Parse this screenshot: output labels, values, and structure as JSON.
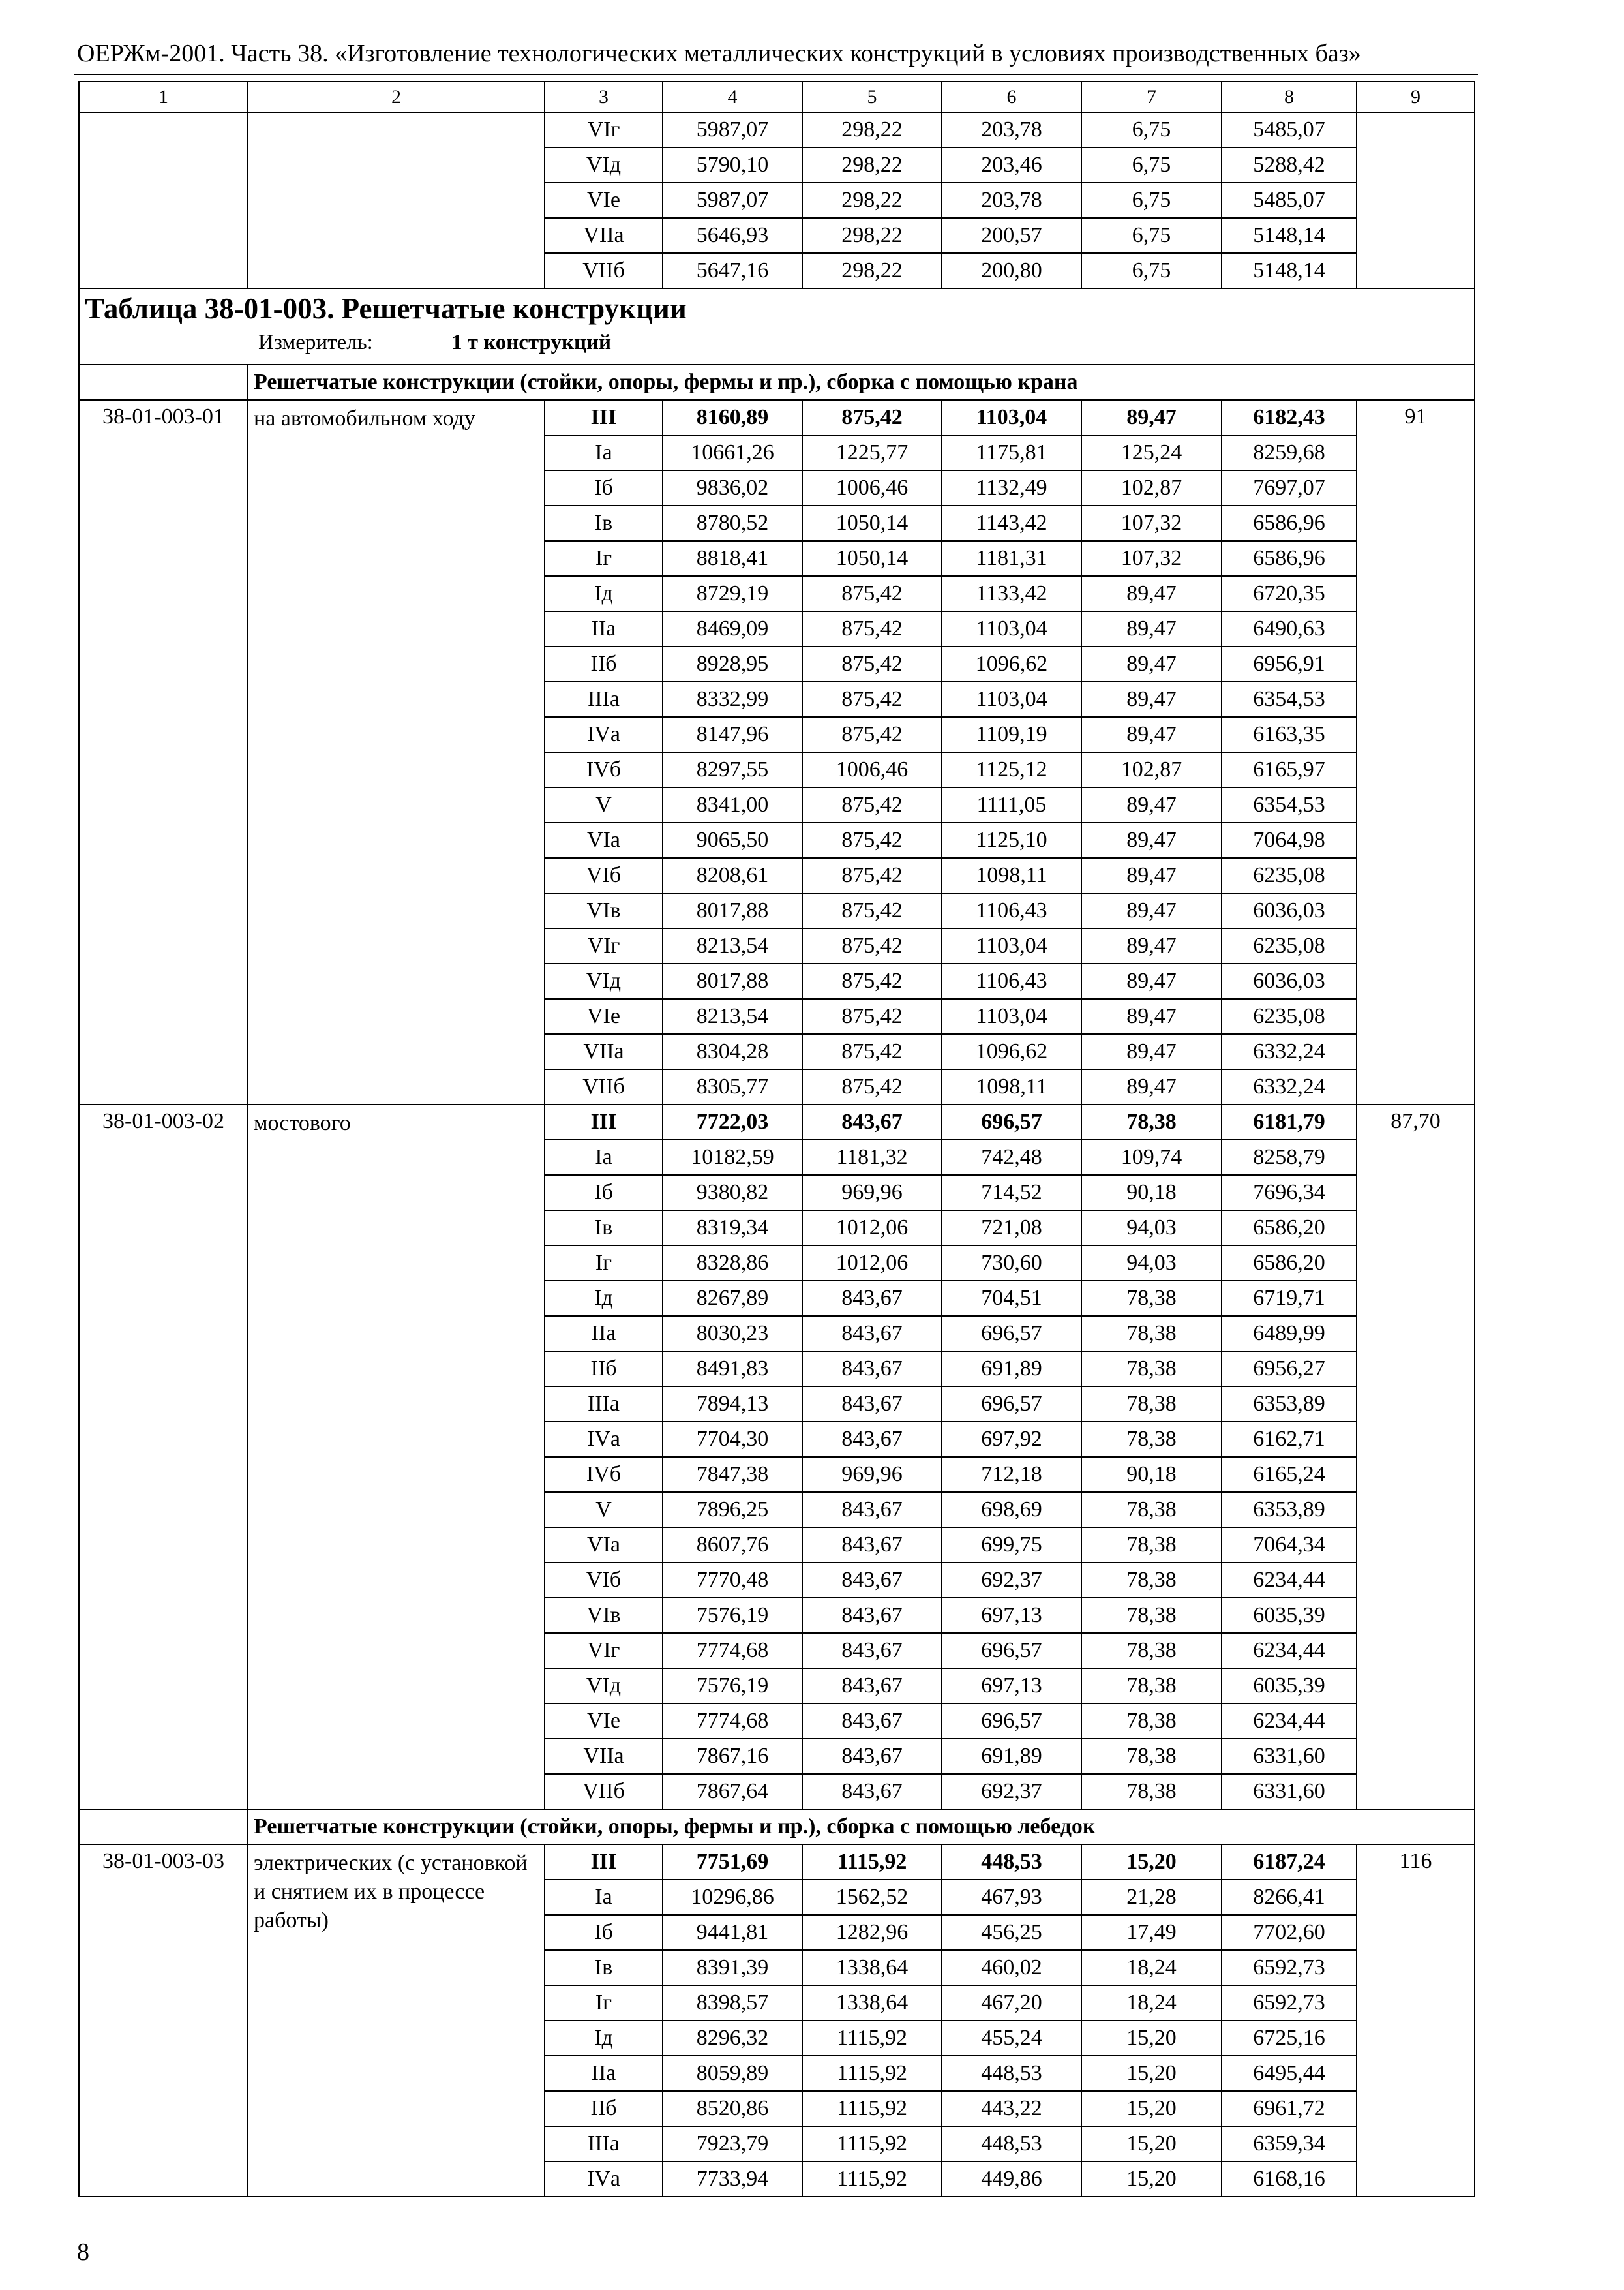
{
  "header": "ОЕРЖм-2001. Часть 38. «Изготовление технологических металлических конструкций в условиях производственных баз»",
  "columns": [
    "1",
    "2",
    "3",
    "4",
    "5",
    "6",
    "7",
    "8",
    "9"
  ],
  "continuation": {
    "rows": [
      [
        "VIг",
        "5987,07",
        "298,22",
        "203,78",
        "6,75",
        "5485,07"
      ],
      [
        "VIд",
        "5790,10",
        "298,22",
        "203,46",
        "6,75",
        "5288,42"
      ],
      [
        "VIе",
        "5987,07",
        "298,22",
        "203,78",
        "6,75",
        "5485,07"
      ],
      [
        "VIIа",
        "5646,93",
        "298,22",
        "200,57",
        "6,75",
        "5148,14"
      ],
      [
        "VIIб",
        "5647,16",
        "298,22",
        "200,80",
        "6,75",
        "5148,14"
      ]
    ]
  },
  "table": {
    "title": "Таблица 38-01-003. Решетчатые конструкции",
    "unit_label": "Измеритель:",
    "unit": "1 т конструкций",
    "sections": [
      {
        "heading": "Решетчатые конструкции (стойки, опоры, фермы и пр.), сборка с помощью крана",
        "groups": [
          {
            "code": "38-01-003-01",
            "name": "на автомобильном ходу",
            "value": "91",
            "rows": [
              [
                "III",
                "8160,89",
                "875,42",
                "1103,04",
                "89,47",
                "6182,43"
              ],
              [
                "Iа",
                "10661,26",
                "1225,77",
                "1175,81",
                "125,24",
                "8259,68"
              ],
              [
                "Iб",
                "9836,02",
                "1006,46",
                "1132,49",
                "102,87",
                "7697,07"
              ],
              [
                "Iв",
                "8780,52",
                "1050,14",
                "1143,42",
                "107,32",
                "6586,96"
              ],
              [
                "Iг",
                "8818,41",
                "1050,14",
                "1181,31",
                "107,32",
                "6586,96"
              ],
              [
                "Iд",
                "8729,19",
                "875,42",
                "1133,42",
                "89,47",
                "6720,35"
              ],
              [
                "IIа",
                "8469,09",
                "875,42",
                "1103,04",
                "89,47",
                "6490,63"
              ],
              [
                "IIб",
                "8928,95",
                "875,42",
                "1096,62",
                "89,47",
                "6956,91"
              ],
              [
                "IIIа",
                "8332,99",
                "875,42",
                "1103,04",
                "89,47",
                "6354,53"
              ],
              [
                "IVа",
                "8147,96",
                "875,42",
                "1109,19",
                "89,47",
                "6163,35"
              ],
              [
                "IVб",
                "8297,55",
                "1006,46",
                "1125,12",
                "102,87",
                "6165,97"
              ],
              [
                "V",
                "8341,00",
                "875,42",
                "1111,05",
                "89,47",
                "6354,53"
              ],
              [
                "VIа",
                "9065,50",
                "875,42",
                "1125,10",
                "89,47",
                "7064,98"
              ],
              [
                "VIб",
                "8208,61",
                "875,42",
                "1098,11",
                "89,47",
                "6235,08"
              ],
              [
                "VIв",
                "8017,88",
                "875,42",
                "1106,43",
                "89,47",
                "6036,03"
              ],
              [
                "VIг",
                "8213,54",
                "875,42",
                "1103,04",
                "89,47",
                "6235,08"
              ],
              [
                "VIд",
                "8017,88",
                "875,42",
                "1106,43",
                "89,47",
                "6036,03"
              ],
              [
                "VIе",
                "8213,54",
                "875,42",
                "1103,04",
                "89,47",
                "6235,08"
              ],
              [
                "VIIа",
                "8304,28",
                "875,42",
                "1096,62",
                "89,47",
                "6332,24"
              ],
              [
                "VIIб",
                "8305,77",
                "875,42",
                "1098,11",
                "89,47",
                "6332,24"
              ]
            ]
          },
          {
            "code": "38-01-003-02",
            "name": "мостового",
            "value": "87,70",
            "rows": [
              [
                "III",
                "7722,03",
                "843,67",
                "696,57",
                "78,38",
                "6181,79"
              ],
              [
                "Iа",
                "10182,59",
                "1181,32",
                "742,48",
                "109,74",
                "8258,79"
              ],
              [
                "Iб",
                "9380,82",
                "969,96",
                "714,52",
                "90,18",
                "7696,34"
              ],
              [
                "Iв",
                "8319,34",
                "1012,06",
                "721,08",
                "94,03",
                "6586,20"
              ],
              [
                "Iг",
                "8328,86",
                "1012,06",
                "730,60",
                "94,03",
                "6586,20"
              ],
              [
                "Iд",
                "8267,89",
                "843,67",
                "704,51",
                "78,38",
                "6719,71"
              ],
              [
                "IIа",
                "8030,23",
                "843,67",
                "696,57",
                "78,38",
                "6489,99"
              ],
              [
                "IIб",
                "8491,83",
                "843,67",
                "691,89",
                "78,38",
                "6956,27"
              ],
              [
                "IIIа",
                "7894,13",
                "843,67",
                "696,57",
                "78,38",
                "6353,89"
              ],
              [
                "IVа",
                "7704,30",
                "843,67",
                "697,92",
                "78,38",
                "6162,71"
              ],
              [
                "IVб",
                "7847,38",
                "969,96",
                "712,18",
                "90,18",
                "6165,24"
              ],
              [
                "V",
                "7896,25",
                "843,67",
                "698,69",
                "78,38",
                "6353,89"
              ],
              [
                "VIа",
                "8607,76",
                "843,67",
                "699,75",
                "78,38",
                "7064,34"
              ],
              [
                "VIб",
                "7770,48",
                "843,67",
                "692,37",
                "78,38",
                "6234,44"
              ],
              [
                "VIв",
                "7576,19",
                "843,67",
                "697,13",
                "78,38",
                "6035,39"
              ],
              [
                "VIг",
                "7774,68",
                "843,67",
                "696,57",
                "78,38",
                "6234,44"
              ],
              [
                "VIд",
                "7576,19",
                "843,67",
                "697,13",
                "78,38",
                "6035,39"
              ],
              [
                "VIе",
                "7774,68",
                "843,67",
                "696,57",
                "78,38",
                "6234,44"
              ],
              [
                "VIIа",
                "7867,16",
                "843,67",
                "691,89",
                "78,38",
                "6331,60"
              ],
              [
                "VIIб",
                "7867,64",
                "843,67",
                "692,37",
                "78,38",
                "6331,60"
              ]
            ]
          }
        ]
      },
      {
        "heading": "Решетчатые конструкции (стойки, опоры, фермы и пр.), сборка с помощью лебедок",
        "groups": [
          {
            "code": "38-01-003-03",
            "name": "электрических (с установкой и снятием их в процессе работы)",
            "value": "116",
            "rows": [
              [
                "III",
                "7751,69",
                "1115,92",
                "448,53",
                "15,20",
                "6187,24"
              ],
              [
                "Iа",
                "10296,86",
                "1562,52",
                "467,93",
                "21,28",
                "8266,41"
              ],
              [
                "Iб",
                "9441,81",
                "1282,96",
                "456,25",
                "17,49",
                "7702,60"
              ],
              [
                "Iв",
                "8391,39",
                "1338,64",
                "460,02",
                "18,24",
                "6592,73"
              ],
              [
                "Iг",
                "8398,57",
                "1338,64",
                "467,20",
                "18,24",
                "6592,73"
              ],
              [
                "Iд",
                "8296,32",
                "1115,92",
                "455,24",
                "15,20",
                "6725,16"
              ],
              [
                "IIа",
                "8059,89",
                "1115,92",
                "448,53",
                "15,20",
                "6495,44"
              ],
              [
                "IIб",
                "8520,86",
                "1115,92",
                "443,22",
                "15,20",
                "6961,72"
              ],
              [
                "IIIа",
                "7923,79",
                "1115,92",
                "448,53",
                "15,20",
                "6359,34"
              ],
              [
                "IVа",
                "7733,94",
                "1115,92",
                "449,86",
                "15,20",
                "6168,16"
              ]
            ]
          }
        ]
      }
    ]
  },
  "page_number": "8"
}
